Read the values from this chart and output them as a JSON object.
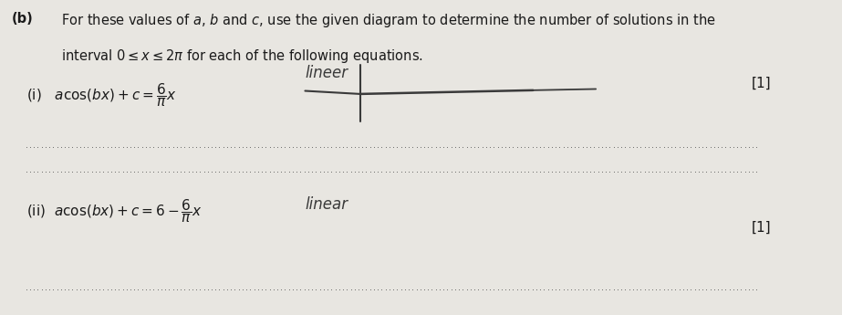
{
  "background_color": "#e8e6e1",
  "text_color": "#1a1a1a",
  "sketch_color": "#3a3a3a",
  "dotted_color": "#555555",
  "b_label": "(b)",
  "main_text_line1": "For these values of $a$, $b$ and $c$, use the given diagram to determine the number of solutions in the",
  "main_text_line2": "interval $0 \\leq x \\leq 2\\pi$ for each of the following equations.",
  "label_i": "(i)   $a\\cos(bx) + c = \\dfrac{6}{\\pi}x$",
  "handwritten_i": "lineer",
  "label_ii": "(ii)  $a\\cos(bx) + c = 6 - \\dfrac{6}{\\pi}x$",
  "handwritten_ii": "linear",
  "mark_i": "[1]",
  "mark_ii": "[1]",
  "font_size_main": 10.5,
  "font_size_label": 11,
  "font_size_mark": 11,
  "font_size_hw": 12
}
